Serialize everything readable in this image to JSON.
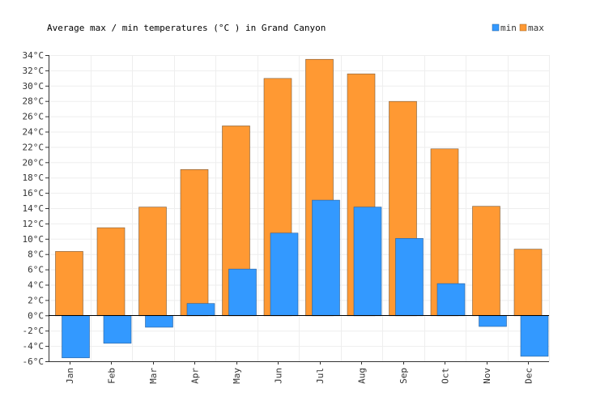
{
  "chart_data": {
    "type": "bar",
    "title": "Average max / min temperatures (°C ) in Grand Canyon",
    "categories": [
      "Jan",
      "Feb",
      "Mar",
      "Apr",
      "May",
      "Jun",
      "Jul",
      "Aug",
      "Sep",
      "Oct",
      "Nov",
      "Dec"
    ],
    "series": [
      {
        "name": "max",
        "color": "#ff9933",
        "values": [
          8.4,
          11.5,
          14.2,
          19.1,
          24.8,
          31.0,
          33.5,
          31.6,
          28.0,
          21.8,
          14.3,
          8.7
        ]
      },
      {
        "name": "min",
        "color": "#3399ff",
        "values": [
          -5.5,
          -3.6,
          -1.5,
          1.6,
          6.1,
          10.8,
          15.1,
          14.2,
          10.1,
          4.2,
          -1.4,
          -5.3
        ]
      }
    ],
    "legend": [
      "min",
      "max"
    ],
    "xlabel": "",
    "ylabel": "",
    "ylim": [
      -6,
      34
    ],
    "ytick_step": 2,
    "ytick_suffix": "°C",
    "grid": true
  }
}
